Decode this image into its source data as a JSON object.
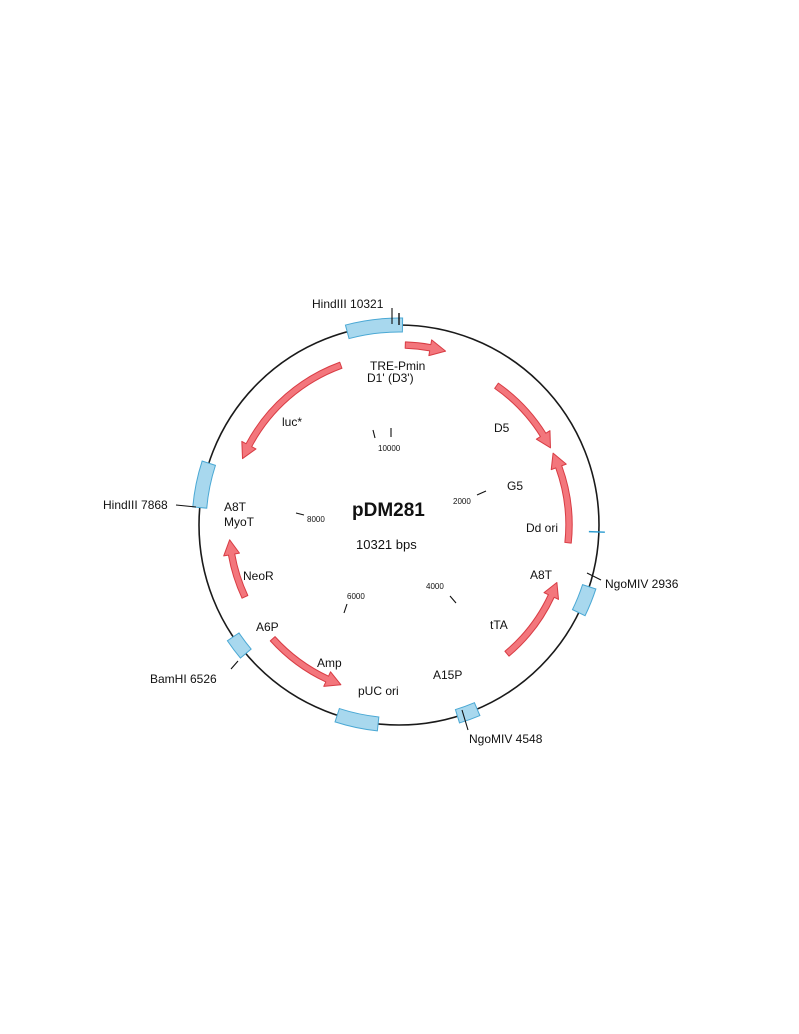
{
  "map": {
    "name": "pDM281",
    "size_text": "10321 bps",
    "total_bp": 10321
  },
  "colors": {
    "backbone": "#1a1a1a",
    "feature_fill": "#a8d8ee",
    "feature_stroke": "#4aa8d4",
    "arrow_fill": "#f3767c",
    "arrow_stroke": "#d83c44",
    "site_mark": "#2a9bd0"
  },
  "features": [
    {
      "name": "HindIII-region",
      "start_deg": -15,
      "end_deg": 1
    },
    {
      "name": "left-region",
      "start_deg": 275,
      "end_deg": 288
    },
    {
      "name": "right-region",
      "start_deg": 108,
      "end_deg": 116
    },
    {
      "name": "BamHI-region",
      "start_deg": 230,
      "end_deg": 236
    },
    {
      "name": "bottom-region",
      "start_deg": 186,
      "end_deg": 198
    },
    {
      "name": "ngomiv-region",
      "start_deg": 157,
      "end_deg": 163
    }
  ],
  "arrows": [
    {
      "name": "tre-pmin-arrow",
      "r": 180,
      "from_deg": 2,
      "to_deg": 15
    },
    {
      "name": "d5-arrow",
      "r": 170,
      "from_deg": 35,
      "to_deg": 63
    },
    {
      "name": "g5-arrow",
      "r": 170,
      "from_deg": 96,
      "to_deg": 65
    },
    {
      "name": "tta-arrow",
      "r": 168,
      "from_deg": 140,
      "to_deg": 110
    },
    {
      "name": "luc-arrow",
      "r": 170,
      "from_deg": 340,
      "to_deg": 293
    },
    {
      "name": "neor-arrow",
      "r": 170,
      "from_deg": 245,
      "to_deg": 265
    },
    {
      "name": "amp-arrow",
      "r": 170,
      "from_deg": 228,
      "to_deg": 200
    }
  ],
  "sites": [
    {
      "name": "HindIII 10321",
      "deg": 0,
      "inner": 200,
      "outer": 212
    },
    {
      "name": "Dd ori site",
      "deg": 92,
      "inner": 190,
      "outer": 206
    }
  ],
  "callouts": [
    {
      "name": "hindiii-7868-label",
      "text": "HindIII 7868"
    },
    {
      "name": "hindiii-10321-label",
      "text": "HindIII 10321"
    },
    {
      "name": "ngomiv-2936-label",
      "text": "NgoMIV 2936"
    },
    {
      "name": "ngomiv-4548-label",
      "text": "NgoMIV 4548"
    },
    {
      "name": "bamhi-6526-label",
      "text": "BamHI 6526"
    }
  ],
  "feature_labels": [
    {
      "name": "tre-pmin-label",
      "text": "TRE-Pmin"
    },
    {
      "name": "d1-d3-label",
      "text": "D1' (D3')"
    },
    {
      "name": "luc-label",
      "text": "luc*"
    },
    {
      "name": "d5-label",
      "text": "D5"
    },
    {
      "name": "g5-label",
      "text": "G5"
    },
    {
      "name": "dd-ori-label",
      "text": "Dd ori"
    },
    {
      "name": "a8t-right-label",
      "text": "A8T"
    },
    {
      "name": "tta-label",
      "text": "tTA"
    },
    {
      "name": "a15p-label",
      "text": "A15P"
    },
    {
      "name": "puc-ori-label",
      "text": "pUC ori"
    },
    {
      "name": "amp-label",
      "text": "Amp"
    },
    {
      "name": "a6p-label",
      "text": "A6P"
    },
    {
      "name": "neor-label",
      "text": "NeoR"
    },
    {
      "name": "a8t-left-label",
      "text": "A8T"
    },
    {
      "name": "myot-label",
      "text": "MyoT"
    }
  ],
  "ticks": [
    {
      "name": "tick-10000",
      "text": "10000"
    },
    {
      "name": "tick-2000",
      "text": "2000"
    },
    {
      "name": "tick-4000",
      "text": "4000"
    },
    {
      "name": "tick-6000",
      "text": "6000"
    },
    {
      "name": "tick-8000",
      "text": "8000"
    }
  ]
}
